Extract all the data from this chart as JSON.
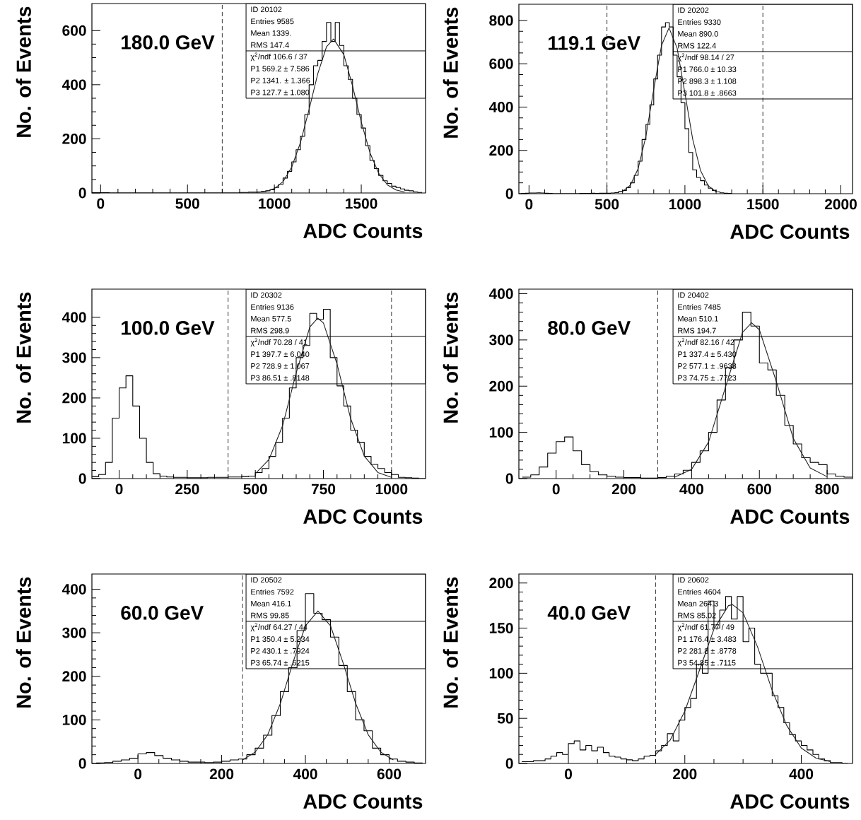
{
  "chart_data": [
    {
      "type": "histogram",
      "xlabel": "ADC Counts",
      "ylabel": "No. of Events",
      "xlim": [
        -50,
        1870
      ],
      "ylim": [
        0,
        700
      ],
      "xticks": [
        0,
        500,
        1000,
        1500
      ],
      "yticks": [
        0,
        200,
        400,
        600
      ],
      "ref_lines": [
        {
          "axis": "x",
          "value": 700,
          "line_style": "dashed"
        }
      ],
      "annotations": [
        "180.0 GeV",
        "ID 20102",
        "Entries 9585",
        "Mean 1339.",
        "RMS 147.4",
        "χ$^{2}$/ndf 106.6 / 37",
        "P1 569.2 ± 7.586",
        "P2 1341. ± 1.366",
        "P3 127.7 ± 1.080"
      ],
      "series": [
        {
          "color": "#000000",
          "bins": [
            -50,
            -25,
            0,
            25,
            50,
            75,
            100,
            125,
            150,
            175,
            200,
            225,
            250,
            275,
            300,
            325,
            350,
            375,
            400,
            425,
            450,
            475,
            500,
            525,
            550,
            575,
            600,
            625,
            650,
            675,
            700,
            725,
            750,
            775,
            800,
            825,
            850,
            875,
            900,
            925,
            950,
            975,
            1000,
            1025,
            1050,
            1075,
            1100,
            1125,
            1150,
            1175,
            1200,
            1225,
            1250,
            1275,
            1300,
            1325,
            1350,
            1375,
            1400,
            1425,
            1450,
            1475,
            1500,
            1525,
            1550,
            1575,
            1600,
            1625,
            1650,
            1675,
            1700,
            1725,
            1750,
            1775,
            1800,
            1825,
            1850
          ],
          "values": [
            1,
            1,
            1,
            1,
            0,
            0,
            0,
            0,
            0,
            0,
            0,
            0,
            0,
            0,
            0,
            0,
            0,
            0,
            0,
            0,
            0,
            0,
            0,
            0,
            0,
            0,
            0,
            0,
            0,
            0,
            0,
            0,
            0,
            0,
            2,
            2,
            3,
            3,
            4,
            6,
            8,
            12,
            20,
            32,
            55,
            80,
            115,
            160,
            210,
            290,
            400,
            470,
            490,
            560,
            630,
            560,
            630,
            545,
            470,
            420,
            350,
            290,
            240,
            175,
            120,
            90,
            65,
            45,
            35,
            25,
            20,
            15,
            10,
            8,
            4,
            2
          ]
        },
        {
          "type": "line",
          "color": "#222222",
          "x": [
            900,
            950,
            1000,
            1050,
            1100,
            1150,
            1200,
            1250,
            1300,
            1341,
            1400,
            1450,
            1500,
            1550,
            1600,
            1650,
            1700,
            1750
          ],
          "values": [
            2,
            5,
            16,
            42,
            96,
            186,
            309,
            441,
            540,
            569,
            511,
            395,
            262,
            149,
            73,
            30,
            11,
            3
          ]
        }
      ]
    },
    {
      "type": "histogram",
      "xlabel": "ADC Counts",
      "ylabel": "No. of Events",
      "xlim": [
        -65,
        2075
      ],
      "ylim": [
        0,
        875
      ],
      "xticks": [
        0,
        500,
        1000,
        1500,
        2000
      ],
      "yticks": [
        0,
        200,
        400,
        600,
        800
      ],
      "ref_lines": [
        {
          "axis": "x",
          "value": 500,
          "line_style": "dashed"
        },
        {
          "axis": "x",
          "value": 1500,
          "line_style": "dashed"
        }
      ],
      "annotations": [
        "119.1 GeV",
        "ID 20202",
        "Entries 9330",
        "Mean 890.0",
        "RMS 122.4",
        "χ$^{2}$/ndf 98.14 / 27",
        "P1 766.0 ± 10.33",
        "P2 898.3 ± 1.108",
        "P3 101.8 ± .8663"
      ],
      "series": [
        {
          "color": "#000000",
          "bins": [
            -50,
            -25,
            0,
            25,
            50,
            75,
            100,
            125,
            150,
            175,
            200,
            225,
            250,
            275,
            300,
            325,
            350,
            375,
            400,
            425,
            450,
            475,
            500,
            525,
            550,
            575,
            600,
            625,
            650,
            675,
            700,
            725,
            750,
            775,
            800,
            825,
            850,
            875,
            900,
            925,
            950,
            975,
            1000,
            1025,
            1050,
            1075,
            1100,
            1125,
            1150,
            1175,
            1200,
            1225,
            1250,
            1275,
            1300
          ],
          "values": [
            1,
            2,
            3,
            3,
            4,
            3,
            2,
            1,
            0,
            0,
            0,
            0,
            0,
            0,
            0,
            1,
            1,
            1,
            2,
            1,
            2,
            2,
            2,
            3,
            5,
            10,
            15,
            28,
            50,
            85,
            150,
            250,
            320,
            410,
            530,
            640,
            770,
            790,
            770,
            640,
            540,
            420,
            300,
            190,
            110,
            75,
            60,
            40,
            25,
            15,
            8,
            4,
            2,
            1
          ]
        },
        {
          "type": "line",
          "color": "#222222",
          "x": [
            600,
            650,
            700,
            750,
            800,
            850,
            898,
            950,
            1000,
            1050,
            1100,
            1150,
            1200
          ],
          "values": [
            10,
            39,
            116,
            266,
            482,
            685,
            766,
            672,
            464,
            251,
            107,
            36,
            9
          ]
        }
      ]
    },
    {
      "type": "histogram",
      "xlabel": "ADC Counts",
      "ylabel": "No. of Events",
      "xlim": [
        -100,
        1125
      ],
      "ylim": [
        0,
        470
      ],
      "xticks": [
        0,
        250,
        500,
        750,
        1000
      ],
      "yticks": [
        0,
        100,
        200,
        300,
        400
      ],
      "ref_lines": [
        {
          "axis": "x",
          "value": 400,
          "line_style": "dashed"
        },
        {
          "axis": "x",
          "value": 1000,
          "line_style": "dashed"
        }
      ],
      "annotations": [
        "100.0 GeV",
        "ID 20302",
        "Entries 9136",
        "Mean 577.5",
        "RMS 298.9",
        "χ$^{2}$/ndf 70.28 / 41",
        "P1 397.7 ± 6.040",
        "P2 728.9 ± 1.067",
        "P3 86.51 ± .8148"
      ],
      "series": [
        {
          "color": "#000000",
          "bins": [
            -100,
            -75,
            -50,
            -25,
            0,
            25,
            50,
            75,
            100,
            125,
            150,
            175,
            200,
            225,
            250,
            275,
            300,
            325,
            350,
            375,
            400,
            425,
            450,
            475,
            500,
            525,
            550,
            575,
            600,
            625,
            650,
            675,
            700,
            725,
            750,
            775,
            800,
            825,
            850,
            875,
            900,
            925,
            950,
            975,
            1000,
            1025,
            1050,
            1075,
            1100,
            1125
          ],
          "values": [
            5,
            10,
            40,
            150,
            225,
            255,
            180,
            100,
            40,
            12,
            6,
            4,
            3,
            3,
            2,
            2,
            2,
            3,
            3,
            3,
            4,
            4,
            5,
            6,
            15,
            25,
            55,
            90,
            150,
            225,
            300,
            330,
            410,
            395,
            420,
            300,
            230,
            180,
            120,
            90,
            55,
            35,
            25,
            15,
            10,
            3,
            2,
            1,
            0
          ]
        },
        {
          "type": "line",
          "color": "#222222",
          "x": [
            500,
            550,
            600,
            650,
            700,
            729,
            750,
            800,
            850,
            900,
            950,
            1000
          ],
          "values": [
            12,
            47,
            131,
            262,
            376,
            398,
            386,
            284,
            149,
            56,
            15,
            3
          ]
        }
      ]
    },
    {
      "type": "histogram",
      "xlabel": "ADC Counts",
      "ylabel": "No. of Events",
      "xlim": [
        -110,
        875
      ],
      "ylim": [
        0,
        410
      ],
      "xticks": [
        0,
        200,
        400,
        600,
        800
      ],
      "yticks": [
        0,
        100,
        200,
        300,
        400
      ],
      "ref_lines": [
        {
          "axis": "x",
          "value": 300,
          "line_style": "dashed"
        }
      ],
      "annotations": [
        "80.0 GeV",
        "ID 20402",
        "Entries 7485",
        "Mean 510.1",
        "RMS 194.7",
        "χ$^{2}$/ndf 82.16 / 42",
        "P1 337.4 ± 5.430",
        "P2 577.1 ± .9638",
        "P3 74.75 ± .7723"
      ],
      "series": [
        {
          "color": "#000000",
          "bins": [
            -100,
            -75,
            -50,
            -25,
            0,
            25,
            50,
            75,
            100,
            125,
            150,
            175,
            200,
            225,
            250,
            275,
            300,
            325,
            350,
            375,
            400,
            425,
            450,
            475,
            500,
            525,
            550,
            575,
            600,
            625,
            650,
            675,
            700,
            725,
            750,
            775,
            800,
            825,
            850,
            875
          ],
          "values": [
            3,
            8,
            25,
            55,
            80,
            90,
            60,
            30,
            15,
            8,
            5,
            3,
            2,
            2,
            1,
            1,
            2,
            5,
            10,
            18,
            35,
            60,
            100,
            170,
            240,
            300,
            360,
            330,
            250,
            235,
            180,
            115,
            75,
            45,
            35,
            30,
            10,
            5,
            3
          ]
        },
        {
          "type": "line",
          "color": "#222222",
          "x": [
            350,
            400,
            450,
            500,
            550,
            577,
            600,
            650,
            700,
            750,
            800
          ],
          "values": [
            3,
            20,
            79,
            198,
            316,
            337,
            322,
            210,
            87,
            23,
            4
          ]
        }
      ]
    },
    {
      "type": "histogram",
      "xlabel": "ADC Counts",
      "ylabel": "No. of Events",
      "xlim": [
        -110,
        687
      ],
      "ylim": [
        0,
        435
      ],
      "xticks": [
        0,
        200,
        400,
        600
      ],
      "yticks": [
        0,
        100,
        200,
        300,
        400
      ],
      "ref_lines": [
        {
          "axis": "x",
          "value": 250,
          "line_style": "dashed"
        }
      ],
      "annotations": [
        "60.0 GeV",
        "ID 20502",
        "Entries 7592",
        "Mean 416.1",
        "RMS 99.85",
        "χ$^{2}$/ndf 64.27 / 44",
        "P1 350.4 ± 5.234",
        "P2 430.1 ± .7924",
        "P3 65.74 ± .6215"
      ],
      "series": [
        {
          "color": "#000000",
          "bins": [
            -100,
            -80,
            -60,
            -40,
            -20,
            0,
            20,
            40,
            60,
            80,
            100,
            120,
            140,
            160,
            180,
            200,
            220,
            240,
            260,
            280,
            300,
            320,
            340,
            360,
            380,
            400,
            420,
            440,
            460,
            480,
            500,
            520,
            540,
            560,
            580,
            600,
            620,
            640,
            660,
            680
          ],
          "values": [
            1,
            2,
            5,
            8,
            12,
            22,
            25,
            18,
            12,
            8,
            5,
            3,
            3,
            2,
            3,
            5,
            8,
            10,
            20,
            35,
            65,
            110,
            165,
            220,
            305,
            390,
            345,
            330,
            290,
            225,
            165,
            100,
            75,
            35,
            20,
            10,
            5,
            3,
            1
          ]
        },
        {
          "type": "line",
          "color": "#222222",
          "x": [
            250,
            280,
            310,
            340,
            370,
            400,
            430,
            460,
            490,
            520,
            550,
            580,
            610
          ],
          "values": [
            8,
            26,
            66,
            137,
            231,
            316,
            350,
            316,
            231,
            138,
            66,
            26,
            8
          ]
        }
      ]
    },
    {
      "type": "histogram",
      "xlabel": "ADC Counts",
      "ylabel": "No. of Events",
      "xlim": [
        -85,
        488
      ],
      "ylim": [
        0,
        210
      ],
      "xticks": [
        0,
        200,
        400
      ],
      "yticks": [
        0,
        50,
        100,
        150,
        200
      ],
      "ref_lines": [
        {
          "axis": "x",
          "value": 150,
          "line_style": "dashed"
        }
      ],
      "annotations": [
        "40.0 GeV",
        "ID 20602",
        "Entries 4604",
        "Mean 264.3",
        "RMS 85.02",
        "χ$^{2}$/ndf 61.77 / 49",
        "P1 176.4 ± 3.483",
        "P2 281.8 ± .8778",
        "P3 54.85 ± .7115"
      ],
      "series": [
        {
          "color": "#000000",
          "bins": [
            -80,
            -70,
            -60,
            -50,
            -40,
            -30,
            -20,
            -10,
            0,
            10,
            20,
            30,
            40,
            50,
            60,
            70,
            80,
            90,
            100,
            110,
            120,
            130,
            140,
            150,
            160,
            170,
            180,
            190,
            200,
            210,
            220,
            230,
            240,
            250,
            260,
            270,
            280,
            290,
            300,
            310,
            320,
            330,
            340,
            350,
            360,
            370,
            380,
            390,
            400,
            410,
            420,
            430,
            440,
            450,
            460,
            470,
            480
          ],
          "values": [
            2,
            2,
            3,
            3,
            5,
            8,
            12,
            10,
            22,
            25,
            15,
            20,
            14,
            18,
            12,
            8,
            7,
            5,
            4,
            3,
            5,
            8,
            9,
            14,
            20,
            33,
            25,
            48,
            62,
            72,
            110,
            100,
            180,
            150,
            170,
            185,
            160,
            185,
            135,
            150,
            110,
            100,
            100,
            75,
            62,
            45,
            32,
            25,
            20,
            15,
            10,
            5,
            3,
            1,
            1,
            0
          ]
        },
        {
          "type": "line",
          "color": "#222222",
          "x": [
            150,
            175,
            200,
            225,
            250,
            275,
            282,
            300,
            325,
            350,
            375,
            400,
            425,
            450
          ],
          "values": [
            10,
            26,
            58,
            103,
            149,
            175,
            176,
            167,
            129,
            81,
            42,
            17,
            6,
            2
          ]
        }
      ]
    }
  ]
}
